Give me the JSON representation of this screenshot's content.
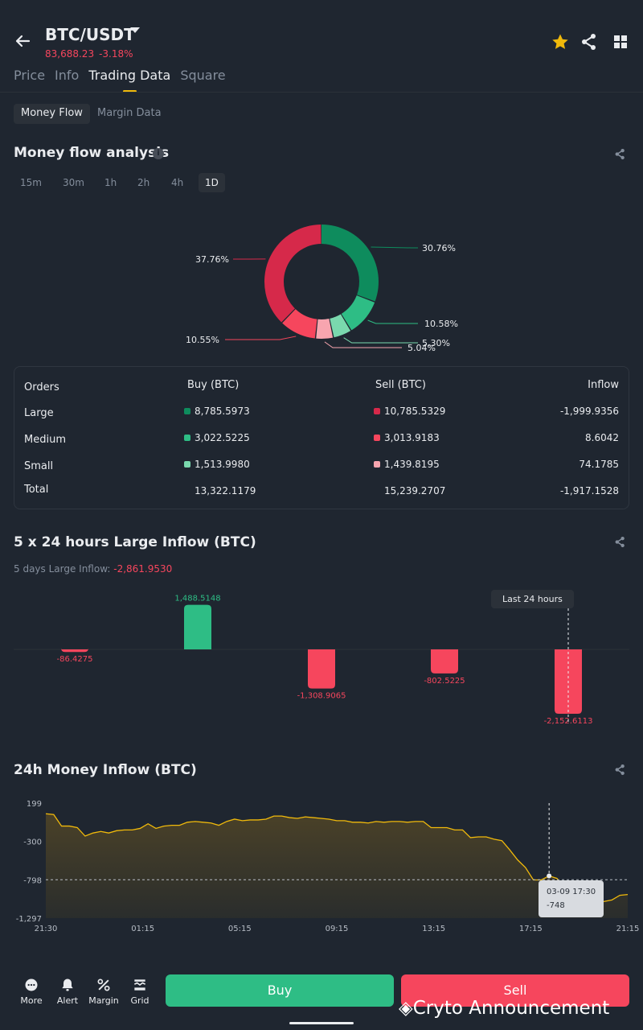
{
  "header": {
    "pair": "BTC/USDT",
    "price": "83,688.23",
    "change": "-3.18%"
  },
  "tabs": [
    "Price",
    "Info",
    "Trading Data",
    "Square"
  ],
  "segments": [
    "Money Flow",
    "Margin Data"
  ],
  "money_flow": {
    "title": "Money flow analysis",
    "timeframes": [
      "15m",
      "30m",
      "1h",
      "2h",
      "4h",
      "1D"
    ],
    "active_timeframe": "1D",
    "donut": [
      {
        "label": "30.76%",
        "value": 30.76,
        "color": "#0e8c5d"
      },
      {
        "label": "10.58%",
        "value": 10.58,
        "color": "#2ebd85"
      },
      {
        "label": "5.30%",
        "value": 5.3,
        "color": "#7ad9ae"
      },
      {
        "label": "5.04%",
        "value": 5.04,
        "color": "#f7a5af"
      },
      {
        "label": "10.55%",
        "value": 10.55,
        "color": "#f6465d"
      },
      {
        "label": "37.76%",
        "value": 37.76,
        "color": "#d6294a"
      }
    ],
    "table": {
      "headers": [
        "Orders",
        "Buy (BTC)",
        "Sell (BTC)",
        "Inflow"
      ],
      "rows": [
        {
          "name": "Large",
          "buy": "8,785.5973",
          "sell": "10,785.5329",
          "inflow": "-1,999.9356"
        },
        {
          "name": "Medium",
          "buy": "3,022.5225",
          "sell": "3,013.9183",
          "inflow": "8.6042"
        },
        {
          "name": "Small",
          "buy": "1,513.9980",
          "sell": "1,439.8195",
          "inflow": "74.1785"
        },
        {
          "name": "Total",
          "buy": "13,322.1179",
          "sell": "15,239.2707",
          "inflow": "-1,917.1528"
        }
      ]
    }
  },
  "large_inflow": {
    "title": "5 x 24 hours Large Inflow (BTC)",
    "summary_label": "5 days Large Inflow:",
    "summary_value": "-2,861.9530",
    "tooltip": "Last 24 hours",
    "chart_data": {
      "type": "bar",
      "categories": [
        "",
        "",
        "",
        "",
        ""
      ],
      "values": [
        -86.4275,
        1488.5148,
        -1308.9065,
        -802.5225,
        -2152.6113
      ],
      "labels": [
        "-86.4275",
        "1,488.5148",
        "-1,308.9065",
        "-802.5225",
        "-2,152.6113"
      ]
    }
  },
  "money_inflow_24h": {
    "title": "24h Money Inflow (BTC)",
    "tooltip_time": "03-09 17:30",
    "tooltip_value": "-748",
    "chart_data": {
      "type": "area",
      "y_ticks": [
        "199",
        "-300",
        "-798",
        "-1,297"
      ],
      "x_ticks": [
        "21:30",
        "01:15",
        "05:15",
        "09:15",
        "13:15",
        "17:15",
        "21:15"
      ],
      "ylim": [
        -1297,
        199
      ],
      "values": [
        60,
        50,
        -100,
        -100,
        -120,
        -230,
        -190,
        -170,
        -190,
        -160,
        -150,
        -150,
        -130,
        -70,
        -130,
        -100,
        -90,
        -90,
        -50,
        -40,
        -50,
        -60,
        -90,
        -40,
        -10,
        -30,
        -20,
        -20,
        -10,
        30,
        30,
        10,
        0,
        20,
        10,
        0,
        -10,
        -30,
        -30,
        -50,
        -50,
        -60,
        -40,
        -50,
        -40,
        -40,
        -50,
        -40,
        -40,
        -120,
        -120,
        -120,
        -150,
        -150,
        -250,
        -240,
        -240,
        -270,
        -290,
        -410,
        -540,
        -640,
        -800,
        -800,
        -748,
        -780,
        -940,
        -1010,
        -1110,
        -1160,
        -1090,
        -1080,
        -1060,
        -1000,
        -990
      ]
    }
  },
  "bottom_nav": [
    {
      "label": "More",
      "icon": "more-icon"
    },
    {
      "label": "Alert",
      "icon": "bell-icon"
    },
    {
      "label": "Margin",
      "icon": "margin-icon"
    },
    {
      "label": "Grid",
      "icon": "grid-bot-icon"
    }
  ],
  "buy_label": "Buy",
  "sell_label": "Sell",
  "watermark": "Cryto Announcement"
}
